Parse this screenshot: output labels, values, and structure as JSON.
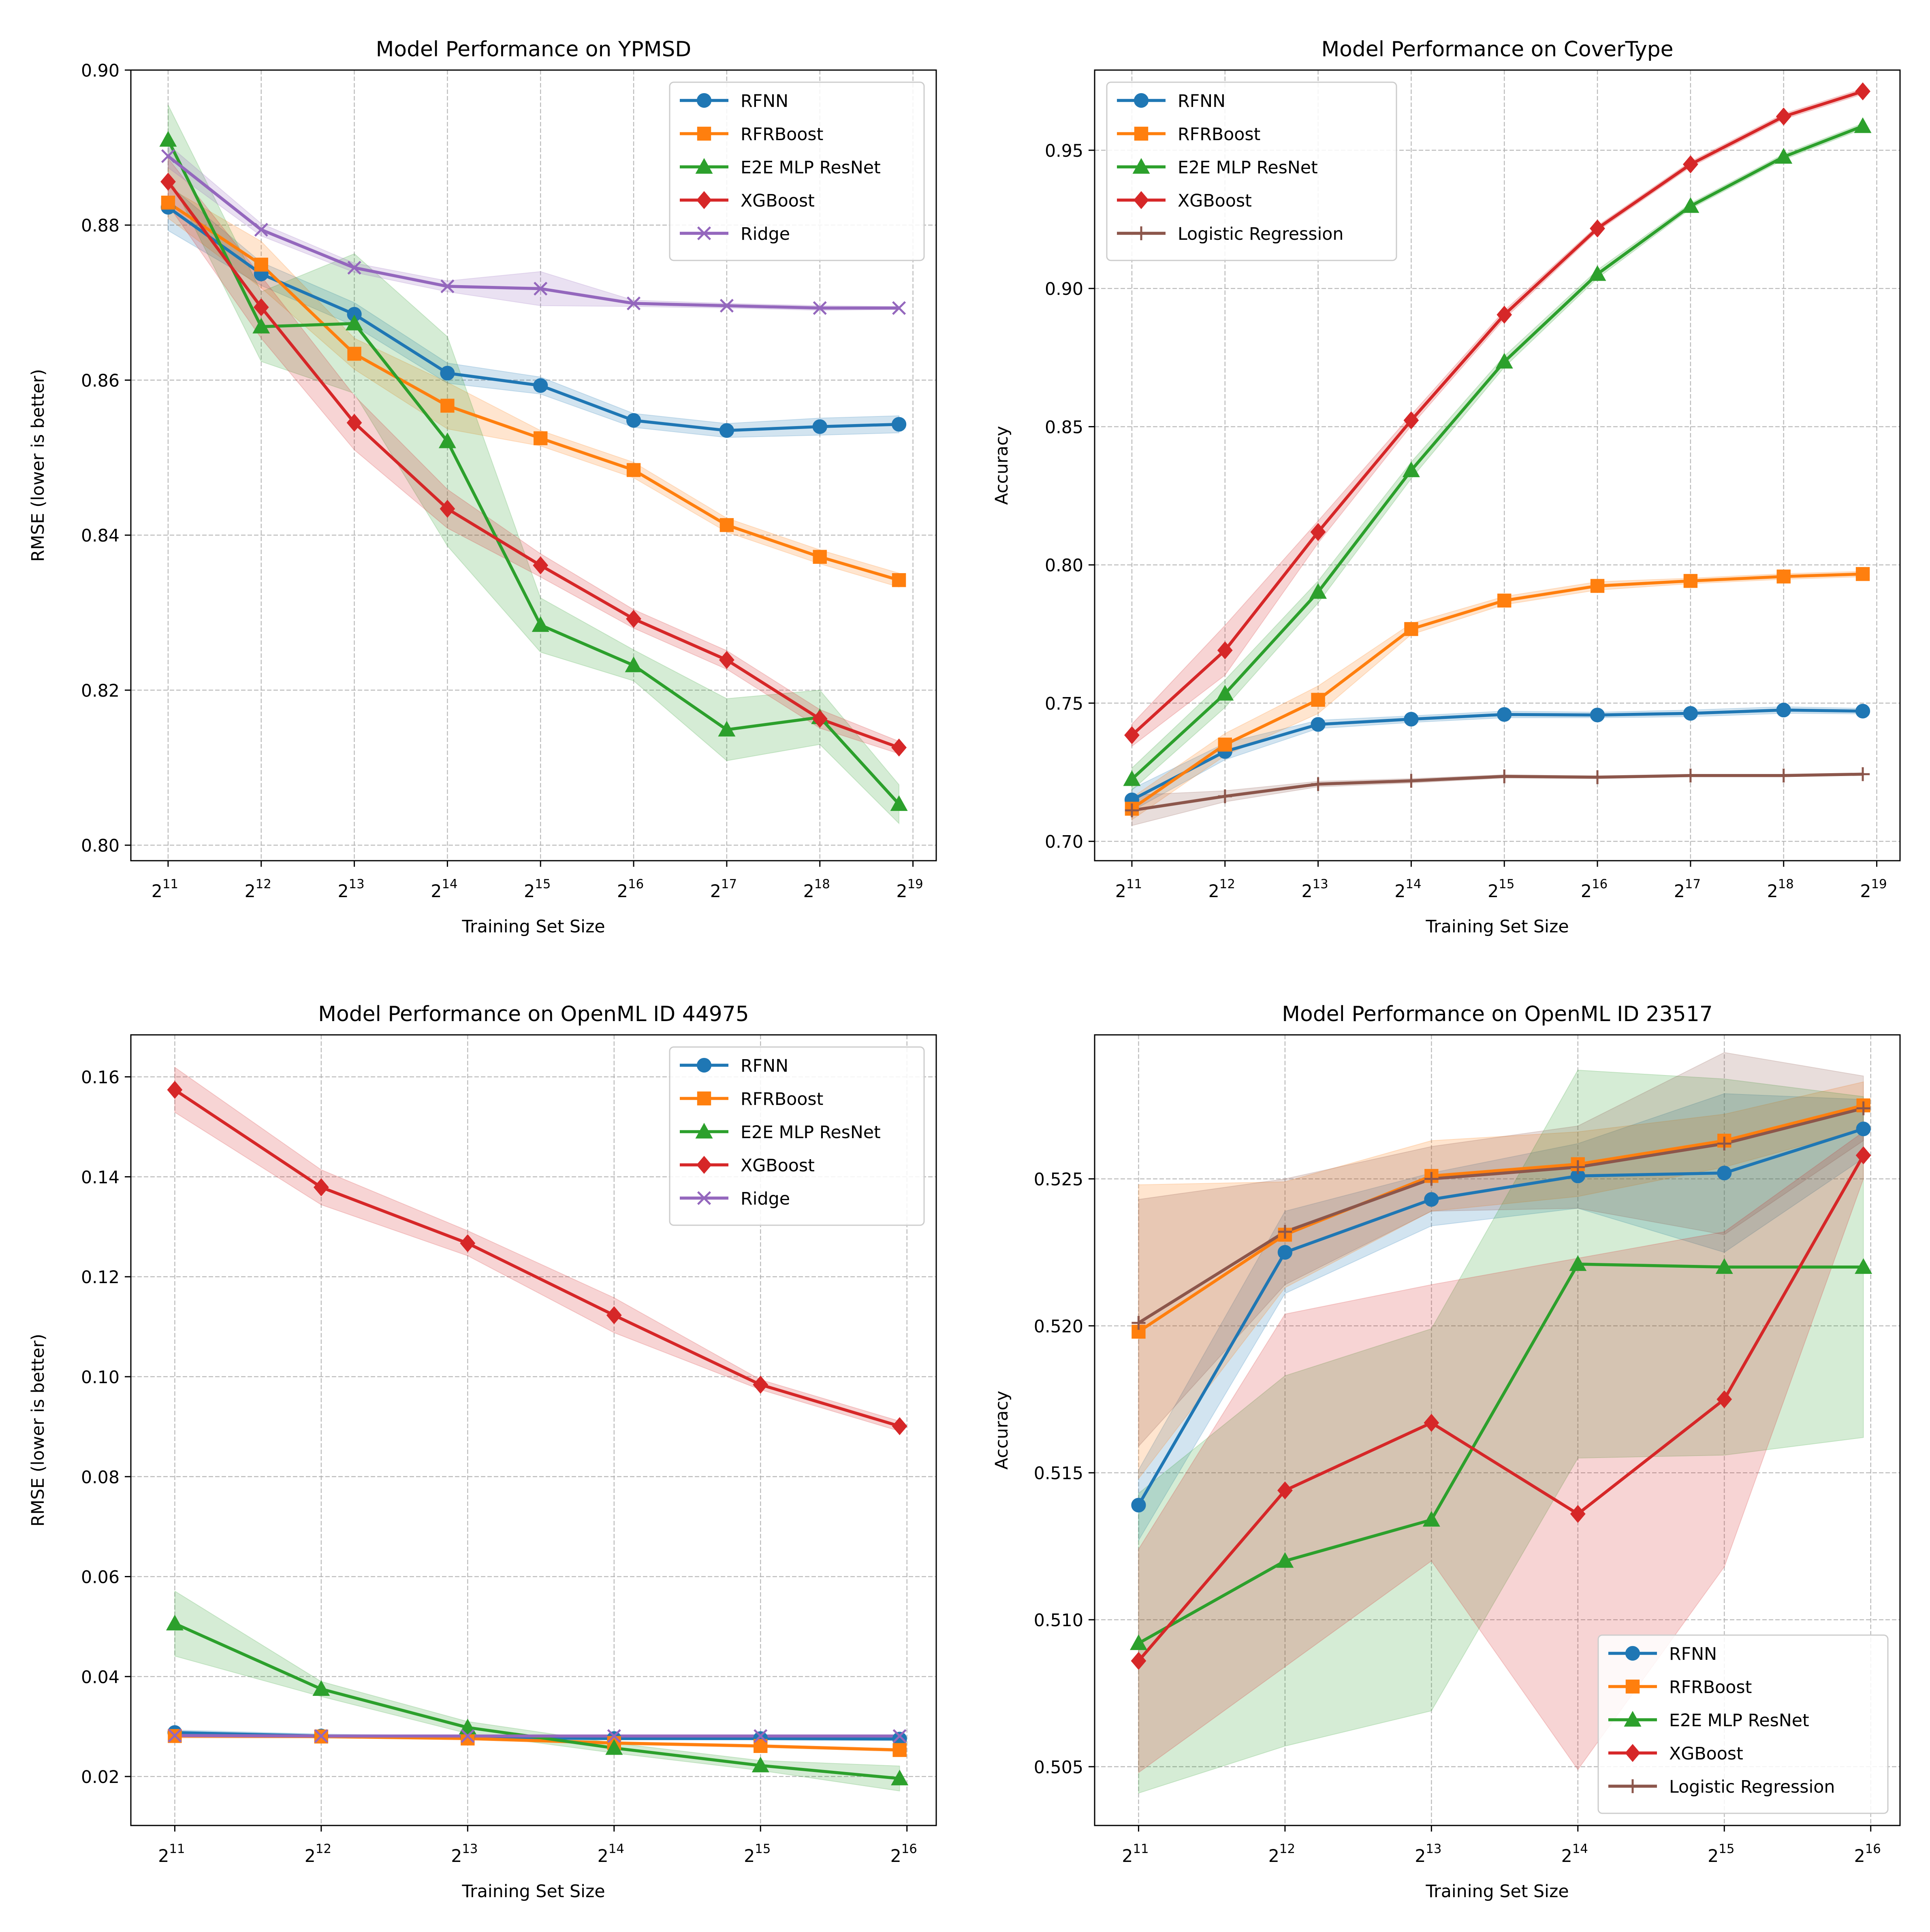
{
  "figure": {
    "background": "#ffffff"
  },
  "colors": {
    "RFNN": "#1f77b4",
    "RFRBoost": "#ff7f0e",
    "E2E MLP ResNet": "#2ca02c",
    "XGBoost": "#d62728",
    "Ridge": "#9467bd",
    "Logistic Regression": "#8c564b"
  },
  "chart_data": [
    {
      "type": "line",
      "title": "Model Performance on YPMSD",
      "xlabel": "Training Set Size",
      "ylabel": "RMSE (lower is better)",
      "x_exponents": [
        11,
        12,
        13,
        14,
        15,
        16,
        17,
        18,
        18.85
      ],
      "xlim": [
        10.6,
        19.25
      ],
      "xticks": [
        11,
        12,
        13,
        14,
        15,
        16,
        17,
        18,
        19
      ],
      "ylim": [
        0.798,
        0.9
      ],
      "yticks": [
        0.8,
        0.82,
        0.84,
        0.86,
        0.88,
        0.9
      ],
      "ytick_labels": [
        "0.80",
        "0.82",
        "0.84",
        "0.86",
        "0.88",
        "0.90"
      ],
      "grid": true,
      "legend": "upper right",
      "series": [
        {
          "name": "RFNN",
          "marker": "circle",
          "values": [
            0.8823,
            0.8737,
            0.8685,
            0.8609,
            0.8593,
            0.8548,
            0.8535,
            0.854,
            0.8543
          ],
          "band": [
            0.003,
            0.0015,
            0.0015,
            0.0013,
            0.0011,
            0.0009,
            0.0009,
            0.0011,
            0.0011
          ]
        },
        {
          "name": "RFRBoost",
          "marker": "square",
          "values": [
            0.8829,
            0.8749,
            0.8634,
            0.8567,
            0.8525,
            0.8484,
            0.8413,
            0.8372,
            0.8342
          ],
          "band": [
            0.002,
            0.003,
            0.002,
            0.003,
            0.001,
            0.001,
            0.0009,
            0.0009,
            0.0009
          ]
        },
        {
          "name": "E2E MLP ResNet",
          "marker": "triangle",
          "values": [
            0.891,
            0.8669,
            0.8673,
            0.8521,
            0.8284,
            0.8232,
            0.8149,
            0.8165,
            0.8053
          ],
          "band": [
            0.0045,
            0.0045,
            0.009,
            0.0135,
            0.0035,
            0.002,
            0.004,
            0.0035,
            0.0025
          ]
        },
        {
          "name": "XGBoost",
          "marker": "diamond",
          "values": [
            0.8856,
            0.8694,
            0.8545,
            0.8434,
            0.8361,
            0.8292,
            0.8239,
            0.8163,
            0.8126
          ],
          "band": [
            0.003,
            0.004,
            0.0035,
            0.0025,
            0.0015,
            0.0012,
            0.0012,
            0.0012,
            0.0008
          ]
        },
        {
          "name": "Ridge",
          "marker": "x",
          "values": [
            0.8889,
            0.8794,
            0.8745,
            0.8721,
            0.8718,
            0.8699,
            0.8696,
            0.8693,
            0.8693
          ],
          "band": [
            0.0015,
            0.0008,
            0.0006,
            0.0007,
            0.0022,
            0.0004,
            0.0003,
            0.0003,
            0.0002
          ]
        }
      ]
    },
    {
      "type": "line",
      "title": "Model Performance on CoverType",
      "xlabel": "Training Set Size",
      "ylabel": "Accuracy",
      "x_exponents": [
        11,
        12,
        13,
        14,
        15,
        16,
        17,
        18,
        18.85
      ],
      "xlim": [
        10.6,
        19.25
      ],
      "xticks": [
        11,
        12,
        13,
        14,
        15,
        16,
        17,
        18,
        19
      ],
      "ylim": [
        0.693,
        0.979
      ],
      "yticks": [
        0.7,
        0.75,
        0.8,
        0.85,
        0.9,
        0.95
      ],
      "ytick_labels": [
        "0.70",
        "0.75",
        "0.80",
        "0.85",
        "0.90",
        "0.95"
      ],
      "grid": true,
      "legend": "upper left",
      "series": [
        {
          "name": "RFNN",
          "marker": "circle",
          "values": [
            0.715,
            0.7325,
            0.7423,
            0.7442,
            0.7459,
            0.7457,
            0.7463,
            0.7475,
            0.7471
          ],
          "band": [
            0.004,
            0.003,
            0.0015,
            0.0012,
            0.0012,
            0.001,
            0.0012,
            0.0012,
            0.001
          ]
        },
        {
          "name": "RFRBoost",
          "marker": "square",
          "values": [
            0.7118,
            0.735,
            0.7512,
            0.7768,
            0.7871,
            0.7924,
            0.7942,
            0.7958,
            0.7967
          ],
          "band": [
            0.004,
            0.004,
            0.005,
            0.002,
            0.0015,
            0.0015,
            0.001,
            0.001,
            0.001
          ]
        },
        {
          "name": "E2E MLP ResNet",
          "marker": "triangle",
          "values": [
            0.7225,
            0.7534,
            0.7902,
            0.8342,
            0.8735,
            0.9052,
            0.9298,
            0.9476,
            0.9587
          ],
          "band": [
            0.004,
            0.005,
            0.004,
            0.003,
            0.002,
            0.0015,
            0.001,
            0.001,
            0.001
          ]
        },
        {
          "name": "XGBoost",
          "marker": "diamond",
          "values": [
            0.7384,
            0.7691,
            0.8119,
            0.8523,
            0.8905,
            0.9217,
            0.9449,
            0.9622,
            0.9713
          ],
          "band": [
            0.004,
            0.009,
            0.004,
            0.002,
            0.0015,
            0.001,
            0.001,
            0.001,
            0.001
          ]
        },
        {
          "name": "Logistic Regression",
          "marker": "plus",
          "values": [
            0.7112,
            0.7163,
            0.7207,
            0.7219,
            0.7235,
            0.7232,
            0.7238,
            0.7238,
            0.7243
          ],
          "band": [
            0.0055,
            0.002,
            0.001,
            0.0008,
            0.0006,
            0.0005,
            0.0004,
            0.0004,
            0.0003
          ]
        }
      ]
    },
    {
      "type": "line",
      "title": "Model Performance on OpenML ID 44975",
      "xlabel": "Training Set Size",
      "ylabel": "RMSE (lower is better)",
      "x_exponents": [
        11,
        12,
        13,
        14,
        15,
        15.95
      ],
      "xlim": [
        10.7,
        16.2
      ],
      "xticks": [
        11,
        12,
        13,
        14,
        15,
        16
      ],
      "ylim": [
        0.0102,
        0.1684
      ],
      "yticks": [
        0.02,
        0.04,
        0.06,
        0.08,
        0.1,
        0.12,
        0.14,
        0.16
      ],
      "ytick_labels": [
        "0.02",
        "0.04",
        "0.06",
        "0.08",
        "0.10",
        "0.12",
        "0.14",
        "0.16"
      ],
      "grid": true,
      "legend": "upper right",
      "series": [
        {
          "name": "RFNN",
          "marker": "circle",
          "values": [
            0.0288,
            0.0281,
            0.0278,
            0.0276,
            0.0276,
            0.0275
          ],
          "band": [
            0.0005,
            0.0004,
            0.0003,
            0.0003,
            0.0003,
            0.0003
          ]
        },
        {
          "name": "RFRBoost",
          "marker": "square",
          "values": [
            0.0281,
            0.028,
            0.0276,
            0.0267,
            0.0261,
            0.0253
          ],
          "band": [
            0.0004,
            0.0003,
            0.0003,
            0.0003,
            0.0003,
            0.0003
          ]
        },
        {
          "name": "E2E MLP ResNet",
          "marker": "triangle",
          "values": [
            0.0506,
            0.0375,
            0.0298,
            0.0257,
            0.0222,
            0.0196
          ],
          "band": [
            0.0065,
            0.0015,
            0.0012,
            0.001,
            0.001,
            0.0025
          ]
        },
        {
          "name": "XGBoost",
          "marker": "diamond",
          "values": [
            0.1574,
            0.1379,
            0.1267,
            0.1123,
            0.0984,
            0.0901
          ],
          "band": [
            0.0045,
            0.0035,
            0.0025,
            0.0035,
            0.001,
            0.001
          ]
        },
        {
          "name": "Ridge",
          "marker": "x",
          "values": [
            0.0282,
            0.0281,
            0.0281,
            0.0281,
            0.0281,
            0.0281
          ],
          "band": [
            0.0002,
            0.0002,
            0.0002,
            0.0002,
            0.0002,
            0.0002
          ]
        }
      ]
    },
    {
      "type": "line",
      "title": "Model Performance on OpenML ID 23517",
      "xlabel": "Training Set Size",
      "ylabel": "Accuracy",
      "x_exponents": [
        11,
        12,
        13,
        14,
        15,
        15.95
      ],
      "xlim": [
        10.7,
        16.2
      ],
      "xticks": [
        11,
        12,
        13,
        14,
        15,
        16
      ],
      "ylim": [
        0.503,
        0.5299
      ],
      "yticks": [
        0.505,
        0.51,
        0.515,
        0.52,
        0.525
      ],
      "ytick_labels": [
        "0.505",
        "0.510",
        "0.515",
        "0.520",
        "0.525"
      ],
      "grid": true,
      "legend": "lower right",
      "series": [
        {
          "name": "RFNN",
          "marker": "circle",
          "values": [
            0.5139,
            0.5225,
            0.5243,
            0.5251,
            0.5252,
            0.5267
          ],
          "band": [
            0.0012,
            0.0014,
            0.0009,
            0.0011,
            0.0027,
            0.001
          ]
        },
        {
          "name": "RFRBoost",
          "marker": "square",
          "values": [
            0.5198,
            0.5231,
            0.5251,
            0.5255,
            0.5263,
            0.5275
          ],
          "band": [
            0.005,
            0.0018,
            0.0012,
            0.0011,
            0.0009,
            0.0008
          ]
        },
        {
          "name": "E2E MLP ResNet",
          "marker": "triangle",
          "values": [
            0.5092,
            0.512,
            0.5134,
            0.5221,
            0.522,
            0.522
          ],
          "band": [
            0.0051,
            0.0063,
            0.0065,
            0.0066,
            0.0064,
            0.0058
          ]
        },
        {
          "name": "XGBoost",
          "marker": "diamond",
          "values": [
            0.5086,
            0.5144,
            0.5167,
            0.5136,
            0.5175,
            0.5258
          ],
          "band": [
            0.0038,
            0.006,
            0.0047,
            0.0087,
            0.0057,
            0.0008
          ]
        },
        {
          "name": "Logistic Regression",
          "marker": "plus",
          "values": [
            0.5201,
            0.5232,
            0.525,
            0.5254,
            0.5262,
            0.5274
          ],
          "band": [
            0.0042,
            0.0018,
            0.0011,
            0.0014,
            0.0031,
            0.0011
          ]
        }
      ]
    }
  ]
}
